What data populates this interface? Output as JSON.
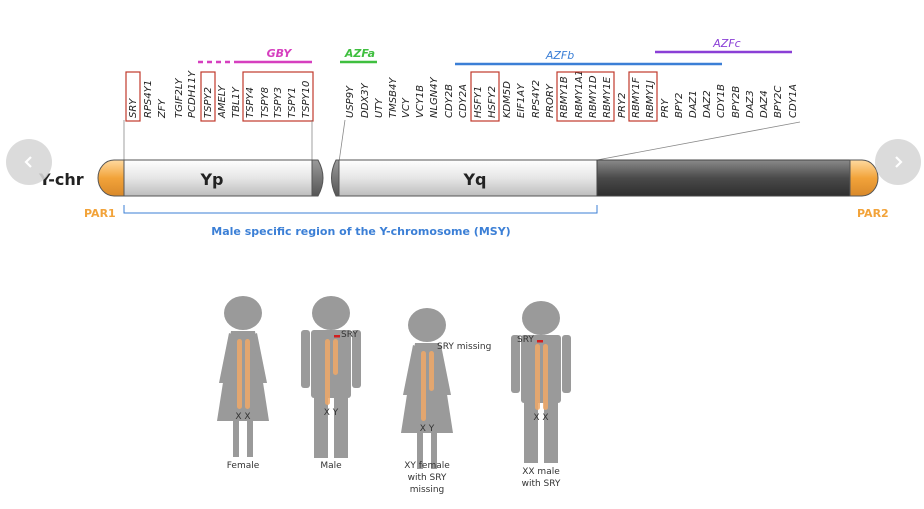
{
  "chromosome": {
    "label": "Y-chr",
    "arm_p": "Yp",
    "arm_q": "Yq",
    "par1": "PAR1",
    "par2": "PAR2",
    "msy_label": "Male specific region of the Y-chromosome (MSY)"
  },
  "regions": [
    {
      "name": "GBY",
      "color": "#d63fbf"
    },
    {
      "name": "AZFa",
      "color": "#3fbf3f"
    },
    {
      "name": "AZFb",
      "color": "#3b7fd6"
    },
    {
      "name": "AZFc",
      "color": "#8a3fd6"
    }
  ],
  "genes": [
    {
      "name": "SRY",
      "boxed": true
    },
    {
      "name": "RPS4Y1",
      "boxed": false
    },
    {
      "name": "ZFY",
      "boxed": false
    },
    {
      "name": "TGIF2LY",
      "boxed": false
    },
    {
      "name": "PCDH11Y",
      "boxed": false
    },
    {
      "name": "TSPY2",
      "boxed": true
    },
    {
      "name": "AMELY",
      "boxed": false
    },
    {
      "name": "TBL1Y",
      "boxed": false
    },
    {
      "name": "TSPY4",
      "boxed": true
    },
    {
      "name": "TSPY8",
      "boxed": true
    },
    {
      "name": "TSPY3",
      "boxed": true
    },
    {
      "name": "TSPY1",
      "boxed": true
    },
    {
      "name": "TSPY10",
      "boxed": true
    },
    {
      "name": "USP9Y",
      "boxed": false
    },
    {
      "name": "DDX3Y",
      "boxed": false
    },
    {
      "name": "UTY",
      "boxed": false
    },
    {
      "name": "TMSB4Y",
      "boxed": false
    },
    {
      "name": "VCY",
      "boxed": false
    },
    {
      "name": "VCY1B",
      "boxed": false
    },
    {
      "name": "NLGN4Y",
      "boxed": false
    },
    {
      "name": "CDY2B",
      "boxed": false
    },
    {
      "name": "CDY2A",
      "boxed": false
    },
    {
      "name": "HSFY1",
      "boxed": true
    },
    {
      "name": "HSFY2",
      "boxed": true
    },
    {
      "name": "KDM5D",
      "boxed": false
    },
    {
      "name": "EIF1AY",
      "boxed": false
    },
    {
      "name": "RPS4Y2",
      "boxed": false
    },
    {
      "name": "PRORY",
      "boxed": false
    },
    {
      "name": "RBMY1B",
      "boxed": true
    },
    {
      "name": "RBMY1A1",
      "boxed": true
    },
    {
      "name": "RBMY1D",
      "boxed": true
    },
    {
      "name": "RBMY1E",
      "boxed": true
    },
    {
      "name": "PRY2",
      "boxed": false
    },
    {
      "name": "RBMY1F",
      "boxed": true
    },
    {
      "name": "RBMY1J",
      "boxed": true
    },
    {
      "name": "PRY",
      "boxed": false
    },
    {
      "name": "BPY2",
      "boxed": false
    },
    {
      "name": "DAZ1",
      "boxed": false
    },
    {
      "name": "DAZ2",
      "boxed": false
    },
    {
      "name": "CDY1B",
      "boxed": false
    },
    {
      "name": "BPY2B",
      "boxed": false
    },
    {
      "name": "DAZ3",
      "boxed": false
    },
    {
      "name": "DAZ4",
      "boxed": false
    },
    {
      "name": "BPY2C",
      "boxed": false
    },
    {
      "name": "CDY1A",
      "boxed": false
    }
  ],
  "figures": [
    {
      "caption": [
        "Female"
      ],
      "chromosomes": "X X",
      "sry_label": ""
    },
    {
      "caption": [
        "Male"
      ],
      "chromosomes": "X Y",
      "sry_label": "SRY"
    },
    {
      "caption": [
        "XY female",
        "with SRY",
        "missing"
      ],
      "chromosomes": "X Y",
      "sry_label": "SRY missing"
    },
    {
      "caption": [
        "XX male",
        "with SRY"
      ],
      "chromosomes": "X X",
      "sry_label": "SRY"
    }
  ],
  "colors": {
    "par": "#f2a33a",
    "light_band": "#e4e4e4",
    "dark_band": "#4a4a4a",
    "box": "#c0392b",
    "msy": "#3b7fd6",
    "figure": "#9a9a9a",
    "chromo": "#f0a867"
  },
  "nav": {
    "prev_icon": "chevron-left-icon",
    "next_icon": "chevron-right-icon"
  }
}
